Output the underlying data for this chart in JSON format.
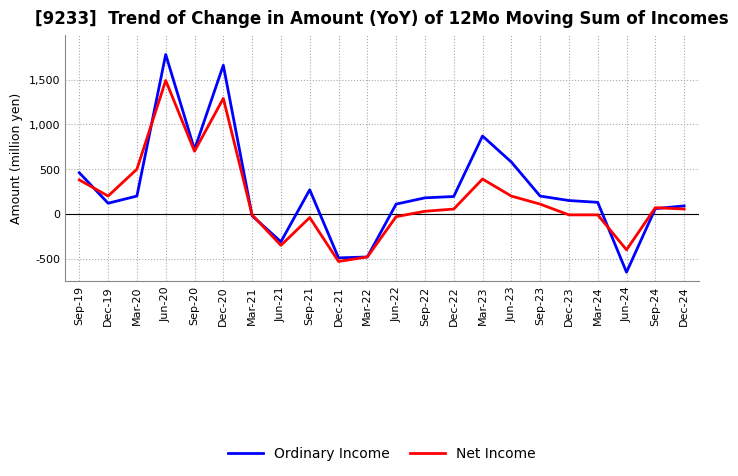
{
  "title": "[9233]  Trend of Change in Amount (YoY) of 12Mo Moving Sum of Incomes",
  "ylabel": "Amount (million yen)",
  "x_labels": [
    "Sep-19",
    "Dec-19",
    "Mar-20",
    "Jun-20",
    "Sep-20",
    "Dec-20",
    "Mar-21",
    "Jun-21",
    "Sep-21",
    "Dec-21",
    "Mar-22",
    "Jun-22",
    "Sep-22",
    "Dec-22",
    "Mar-23",
    "Jun-23",
    "Sep-23",
    "Dec-23",
    "Mar-24",
    "Jun-24",
    "Sep-24",
    "Dec-24"
  ],
  "ordinary_income": [
    460,
    120,
    200,
    1780,
    720,
    1660,
    -20,
    -310,
    270,
    -490,
    -480,
    110,
    180,
    195,
    870,
    580,
    200,
    150,
    130,
    -650,
    60,
    90
  ],
  "net_income": [
    380,
    200,
    500,
    1490,
    700,
    1290,
    -10,
    -350,
    -40,
    -530,
    -480,
    -30,
    30,
    55,
    390,
    200,
    110,
    -10,
    -10,
    -400,
    70,
    55
  ],
  "ordinary_income_color": "#0000FF",
  "net_income_color": "#FF0000",
  "ylim": [
    -750,
    2000
  ],
  "yticks": [
    -500,
    0,
    500,
    1000,
    1500
  ],
  "background_color": "#FFFFFF",
  "grid_color": "#AAAAAA",
  "zero_line_color": "#000000",
  "title_fontsize": 12,
  "axis_label_fontsize": 9,
  "tick_fontsize": 8,
  "legend_fontsize": 10,
  "line_width": 2.0
}
